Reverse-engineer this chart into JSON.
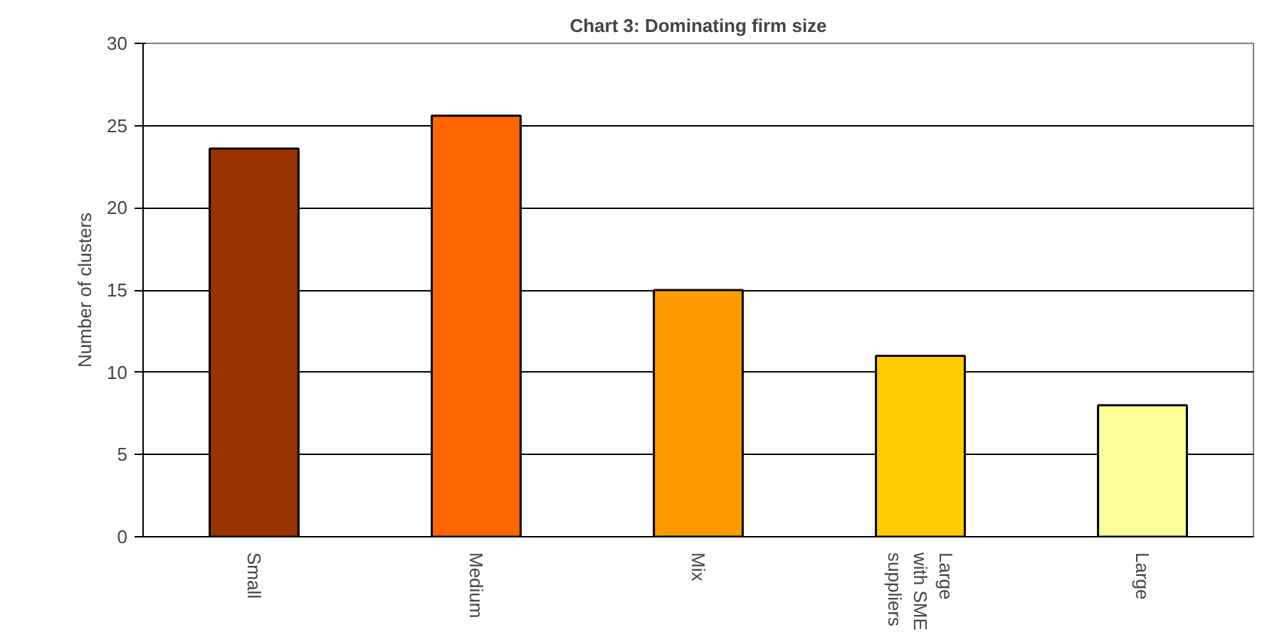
{
  "chart_data": {
    "type": "bar",
    "title": "Chart 3: Dominating firm size",
    "ylabel": "Number of clusters",
    "categories": [
      "Small",
      "Medium",
      "Mix",
      "Large\nwith SME\nsuppliers",
      "Large"
    ],
    "values": [
      23.6,
      25.6,
      15,
      11,
      8
    ],
    "colors": [
      "#993300",
      "#ff6600",
      "#ff9900",
      "#ffcc00",
      "#ffff99"
    ],
    "ylim": [
      0,
      30
    ],
    "yticks": [
      0,
      5,
      10,
      15,
      20,
      25,
      30
    ],
    "grid": "y"
  }
}
